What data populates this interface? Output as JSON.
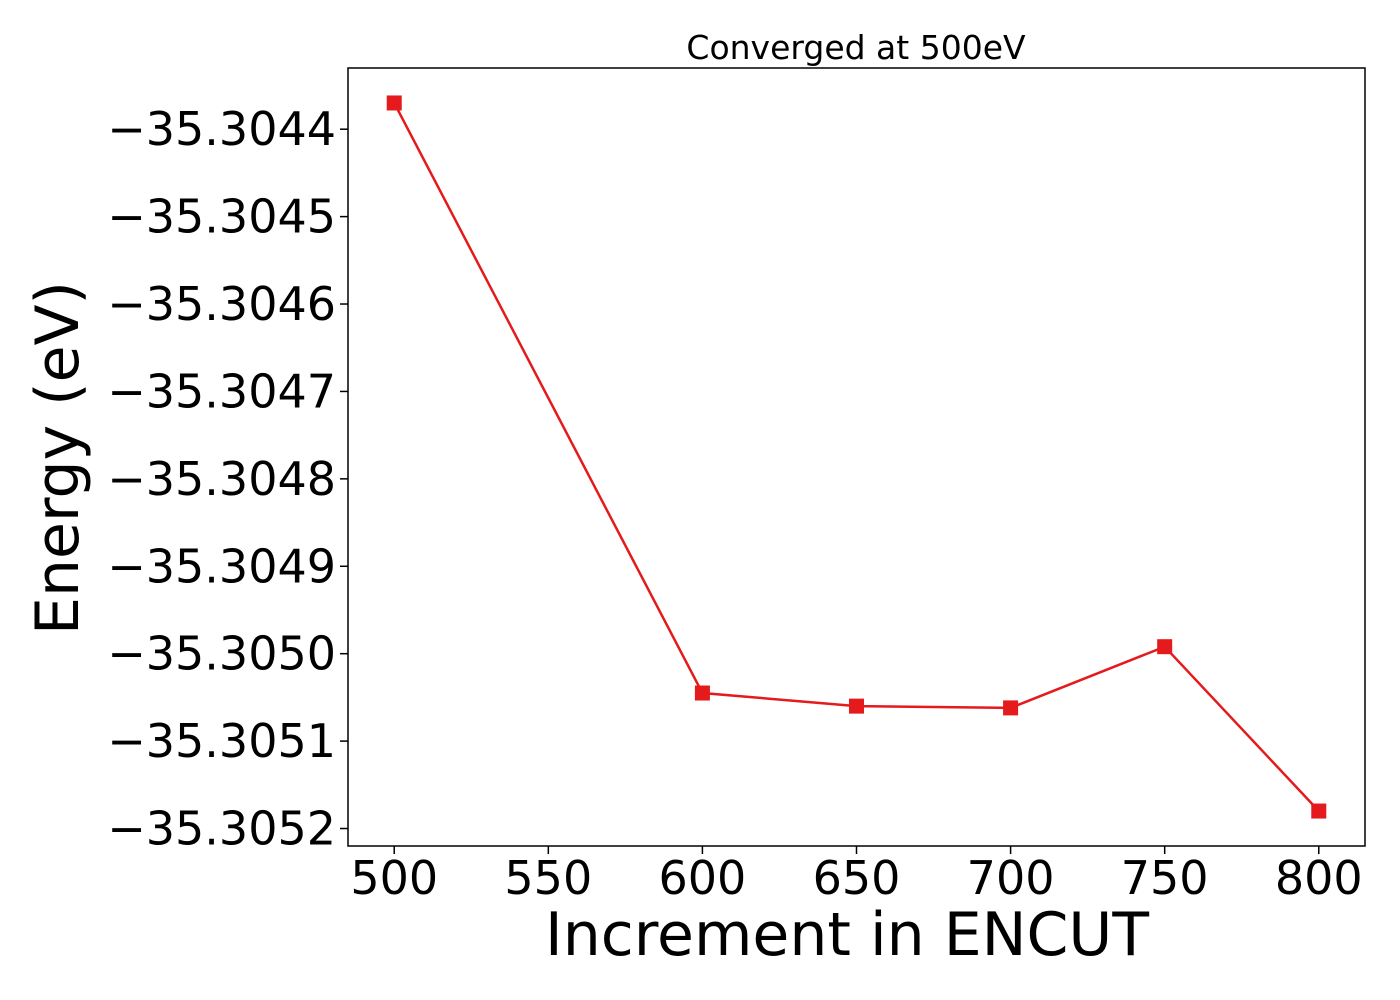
{
  "chart_data": {
    "type": "line",
    "title": "Converged at 500eV",
    "xlabel": "Increment in ENCUT",
    "ylabel": "Energy (eV)",
    "xlim": [
      485,
      815
    ],
    "ylim": [
      -35.30522,
      -35.30433
    ],
    "grid": false,
    "x_ticks": [
      500,
      550,
      600,
      650,
      700,
      750,
      800
    ],
    "x_tick_labels": [
      "500",
      "550",
      "600",
      "650",
      "700",
      "750",
      "800"
    ],
    "y_ticks": [
      -35.3044,
      -35.3045,
      -35.3046,
      -35.3047,
      -35.3048,
      -35.3049,
      -35.305,
      -35.3051,
      -35.3052
    ],
    "y_tick_labels": [
      "−35.3044",
      "−35.3045",
      "−35.3046",
      "−35.3047",
      "−35.3048",
      "−35.3049",
      "−35.3050",
      "−35.3051",
      "−35.3052"
    ],
    "series": [
      {
        "color": "#e41a1c",
        "marker": "square",
        "x": [
          500,
          600,
          650,
          700,
          750,
          800
        ],
        "y": [
          -35.30437,
          -35.305045,
          -35.30506,
          -35.305062,
          -35.304992,
          -35.30518
        ]
      }
    ]
  }
}
